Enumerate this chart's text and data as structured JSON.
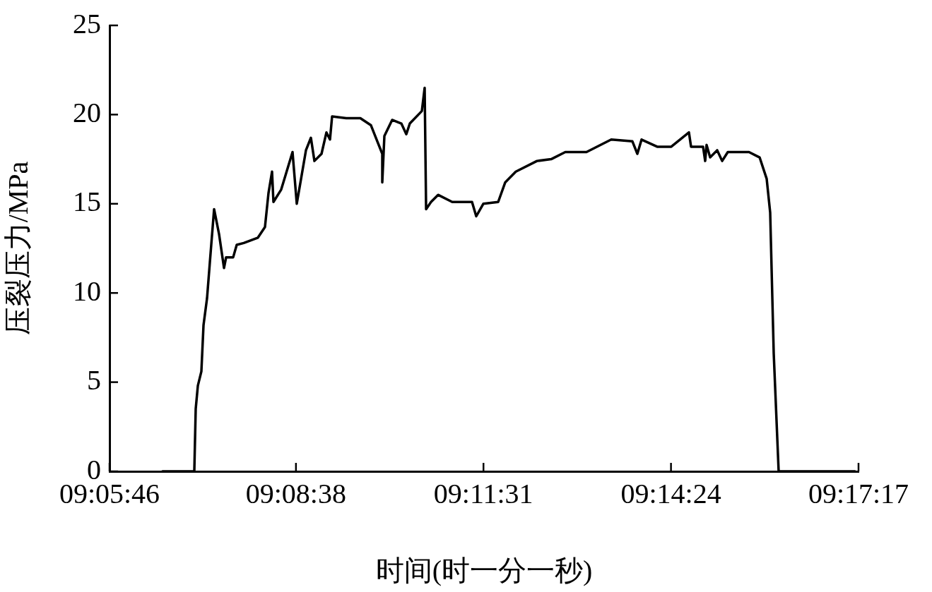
{
  "chart_data": {
    "type": "line",
    "xlabel": "时间(时一分一秒)",
    "ylabel": "压裂压力/MPa",
    "xlim": [
      9.096111,
      9.288056
    ],
    "xticks": [
      {
        "value": 9.096111,
        "label": "09:05:46"
      },
      {
        "value": 9.143889,
        "label": "09:08:38"
      },
      {
        "value": 9.191944,
        "label": "09:11:31"
      },
      {
        "value": 9.24,
        "label": "09:14:24"
      },
      {
        "value": 9.288056,
        "label": "09:17:17"
      }
    ],
    "ylim": [
      0,
      25
    ],
    "yticks": [
      0,
      5,
      10,
      15,
      20,
      25
    ],
    "grid": false,
    "legend": false,
    "marker": "none",
    "line_style": "solid",
    "series": [
      {
        "color": "#000000",
        "x": [
          9.10969,
          9.11784,
          9.1182,
          9.11875,
          9.11965,
          9.1202,
          9.1211,
          9.12182,
          9.12291,
          9.12418,
          9.12545,
          9.12599,
          9.1278,
          9.12871,
          9.13052,
          9.13414,
          9.13595,
          9.13685,
          9.13776,
          9.13812,
          9.14011,
          9.14301,
          9.1441,
          9.14645,
          9.14772,
          9.14862,
          9.15044,
          9.1517,
          9.15261,
          9.15315,
          9.15677,
          9.16039,
          9.16311,
          9.16492,
          9.16601,
          9.16601,
          9.16655,
          9.16854,
          9.1709,
          9.17217,
          9.17307,
          9.17615,
          9.17687,
          9.17724,
          9.1785,
          9.18031,
          9.18394,
          9.18901,
          9.19009,
          9.1919,
          9.19571,
          9.19752,
          9.20023,
          9.20566,
          9.20929,
          9.21291,
          9.21834,
          9.22468,
          9.23011,
          9.23138,
          9.23246,
          9.23645,
          9.24007,
          9.2446,
          9.24514,
          9.24822,
          9.24876,
          9.24912,
          9.25003,
          9.25184,
          9.25311,
          9.25456,
          9.25999,
          9.26271,
          9.26452,
          9.26542,
          9.26633,
          9.26759,
          9.28715
        ],
        "values": [
          0,
          0,
          3.5,
          4.8,
          5.6,
          8.2,
          9.7,
          11.7,
          14.7,
          13.3,
          11.4,
          12.0,
          12.0,
          12.7,
          12.8,
          13.1,
          13.7,
          15.6,
          16.8,
          15.1,
          15.8,
          17.9,
          15.0,
          18.0,
          18.7,
          17.4,
          17.8,
          19.0,
          18.6,
          19.9,
          19.8,
          19.8,
          19.4,
          18.4,
          17.8,
          16.2,
          18.8,
          19.7,
          19.5,
          18.9,
          19.5,
          20.2,
          21.5,
          14.7,
          15.1,
          15.5,
          15.1,
          15.1,
          14.3,
          15.0,
          15.1,
          16.2,
          16.8,
          17.4,
          17.5,
          17.9,
          17.9,
          18.6,
          18.5,
          17.8,
          18.6,
          18.2,
          18.2,
          19.0,
          18.2,
          18.2,
          17.4,
          18.3,
          17.6,
          18.0,
          17.4,
          17.9,
          17.9,
          17.6,
          16.4,
          14.5,
          6.6,
          0,
          0
        ]
      }
    ]
  }
}
